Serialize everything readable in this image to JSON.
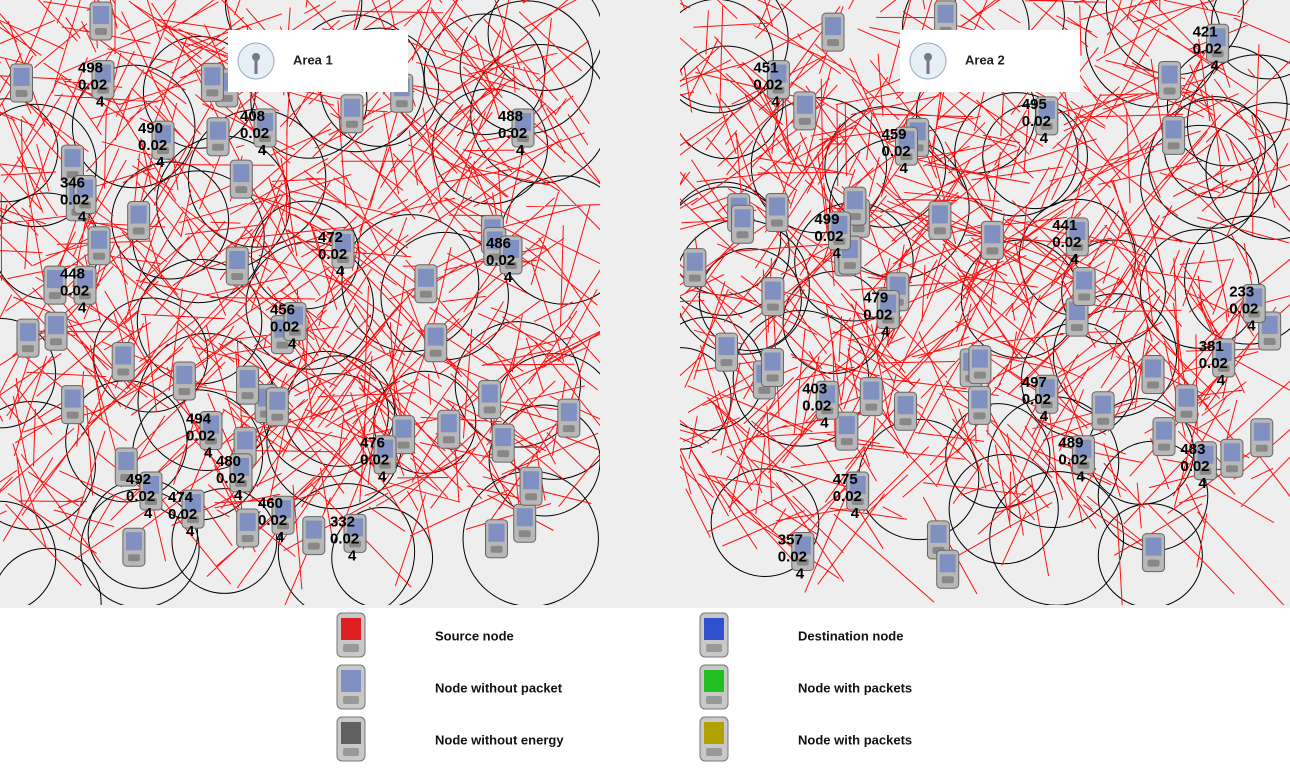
{
  "areas": [
    {
      "label": "Area 1",
      "nodes": [
        {
          "id": "498",
          "energy": "0.02",
          "hops": "4"
        },
        {
          "id": "490",
          "energy": "0.02",
          "hops": "4"
        },
        {
          "id": "346",
          "energy": "0.02",
          "hops": "4"
        },
        {
          "id": "408",
          "energy": "0.02",
          "hops": "4"
        },
        {
          "id": "488",
          "energy": "0.02",
          "hops": "4"
        },
        {
          "id": "472",
          "energy": "0.02",
          "hops": "4"
        },
        {
          "id": "448",
          "energy": "0.02",
          "hops": "4"
        },
        {
          "id": "486",
          "energy": "0.02",
          "hops": "4"
        },
        {
          "id": "456",
          "energy": "0.02",
          "hops": "4"
        },
        {
          "id": "494",
          "energy": "0.02",
          "hops": "4"
        },
        {
          "id": "476",
          "energy": "0.02",
          "hops": "4"
        },
        {
          "id": "492",
          "energy": "0.02",
          "hops": "4"
        },
        {
          "id": "474",
          "energy": "0.02",
          "hops": "4"
        },
        {
          "id": "480",
          "energy": "0.02",
          "hops": "4"
        },
        {
          "id": "460",
          "energy": "0.02",
          "hops": "4"
        },
        {
          "id": "332",
          "energy": "0.02",
          "hops": "4"
        }
      ]
    },
    {
      "label": "Area 2",
      "nodes": [
        {
          "id": "451",
          "energy": "0.02",
          "hops": "4"
        },
        {
          "id": "421",
          "energy": "0.02",
          "hops": "4"
        },
        {
          "id": "459",
          "energy": "0.02",
          "hops": "4"
        },
        {
          "id": "495",
          "energy": "0.02",
          "hops": "4"
        },
        {
          "id": "499",
          "energy": "0.02",
          "hops": "4"
        },
        {
          "id": "441",
          "energy": "0.02",
          "hops": "4"
        },
        {
          "id": "479",
          "energy": "0.02",
          "hops": "4"
        },
        {
          "id": "233",
          "energy": "0.02",
          "hops": "4"
        },
        {
          "id": "403",
          "energy": "0.02",
          "hops": "4"
        },
        {
          "id": "497",
          "energy": "0.02",
          "hops": "4"
        },
        {
          "id": "381",
          "energy": "0.02",
          "hops": "4"
        },
        {
          "id": "489",
          "energy": "0.02",
          "hops": "4"
        },
        {
          "id": "475",
          "energy": "0.02",
          "hops": "4"
        },
        {
          "id": "483",
          "energy": "0.02",
          "hops": "4"
        },
        {
          "id": "357",
          "energy": "0.02",
          "hops": "4"
        }
      ]
    }
  ],
  "legend": [
    {
      "label": "Source node",
      "color": "#e02020"
    },
    {
      "label": "Destination node",
      "color": "#3050d0"
    },
    {
      "label": "Node without packet",
      "color": "#8090c0"
    },
    {
      "label": "Node with packets",
      "color": "#20c020"
    },
    {
      "label": "Node without energy",
      "color": "#606060"
    },
    {
      "label": "Node with packets",
      "color": "#b0a000"
    }
  ]
}
